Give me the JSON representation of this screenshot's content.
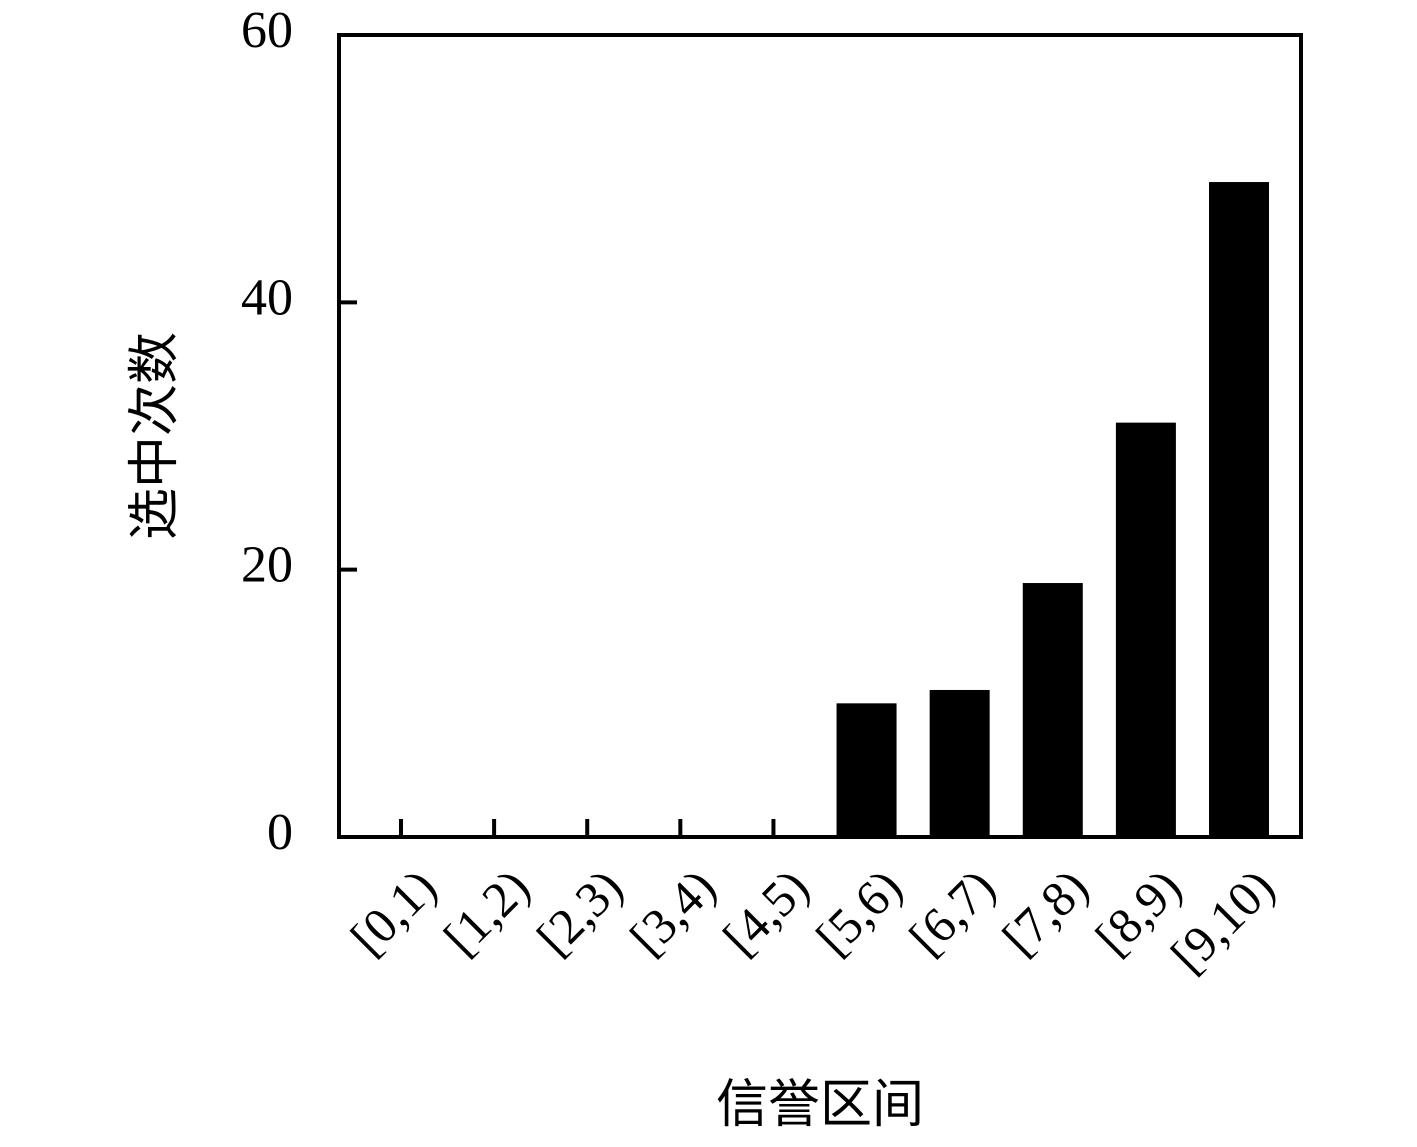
{
  "chart_data": {
    "type": "bar",
    "x_label": "信誉区间",
    "y_label": "选中次数",
    "categories": [
      "[0,1)",
      "[1,2)",
      "[2,3)",
      "[3,4)",
      "[4,5)",
      "[5,6)",
      "[6,7)",
      "[7,8)",
      "[8,9)",
      "[9,10)"
    ],
    "values": [
      0,
      0,
      0,
      0,
      0,
      10,
      11,
      19,
      31,
      49
    ],
    "color": "#000000",
    "ylim": [
      0,
      60
    ],
    "yticks": [
      0,
      20,
      40,
      60
    ],
    "grid": false
  }
}
